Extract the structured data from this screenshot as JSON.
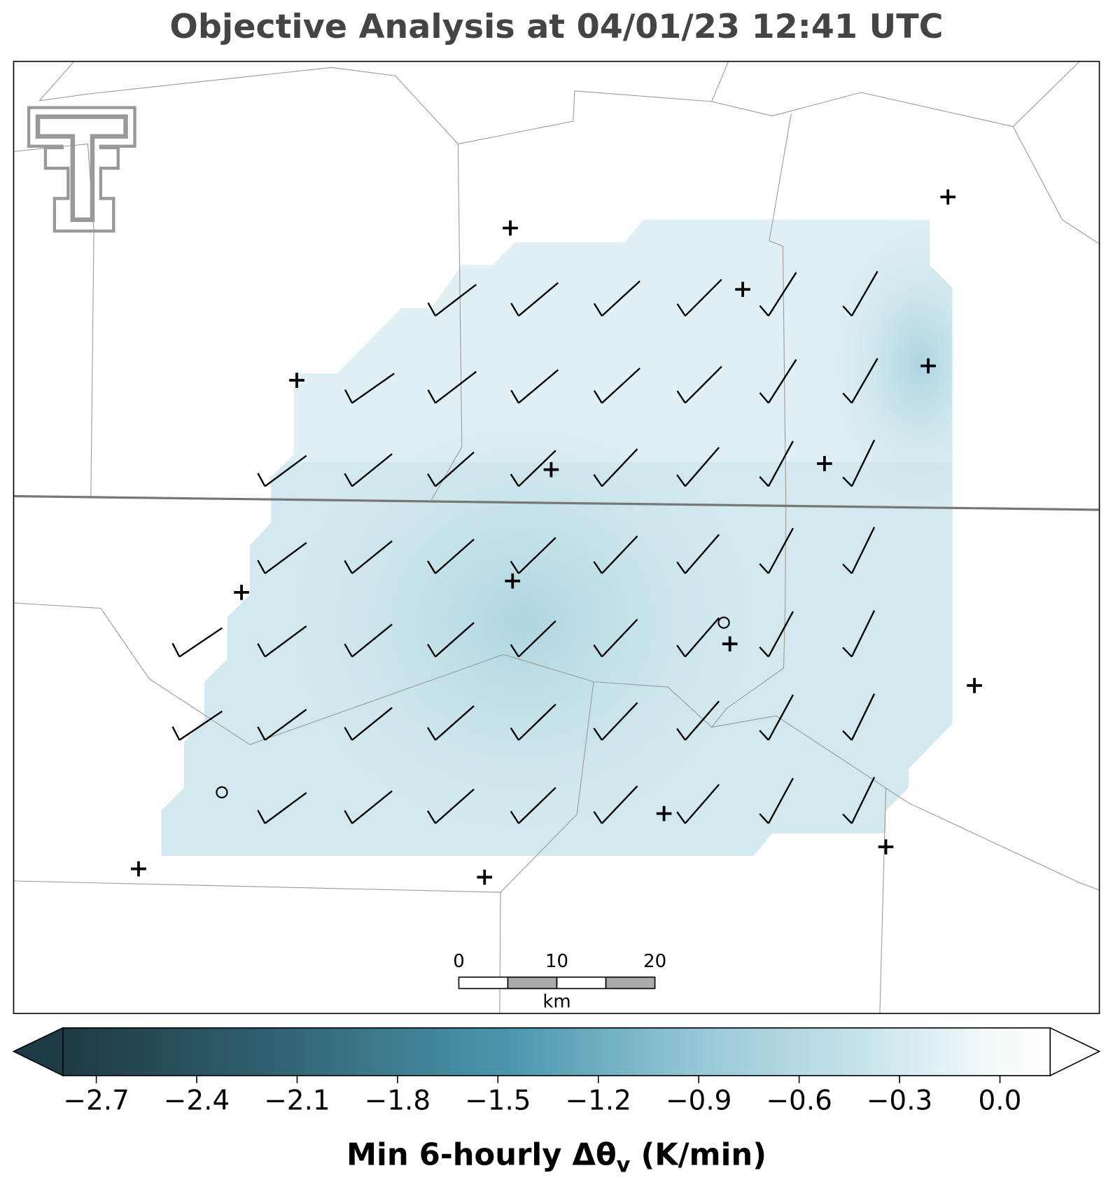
{
  "title": "Objective Analysis at 04/01/23 12:41 UTC",
  "scale_bar": {
    "ticks": [
      0,
      10,
      20
    ],
    "unit": "km"
  },
  "colorbar": {
    "label_main": "Min 6-hourly Δθ",
    "label_sub": "v",
    "label_end": " (K/min)",
    "clim": [
      -2.8,
      0.15
    ],
    "ticks": [
      {
        "value": -2.7,
        "label": "−2.7"
      },
      {
        "value": -2.4,
        "label": "−2.4"
      },
      {
        "value": -2.1,
        "label": "−2.1"
      },
      {
        "value": -1.8,
        "label": "−1.8"
      },
      {
        "value": -1.5,
        "label": "−1.5"
      },
      {
        "value": -1.2,
        "label": "−1.2"
      },
      {
        "value": -0.9,
        "label": "−0.9"
      },
      {
        "value": -0.6,
        "label": "−0.6"
      },
      {
        "value": -0.3,
        "label": "−0.3"
      },
      {
        "value": 0,
        "label": "0.0"
      }
    ]
  }
}
